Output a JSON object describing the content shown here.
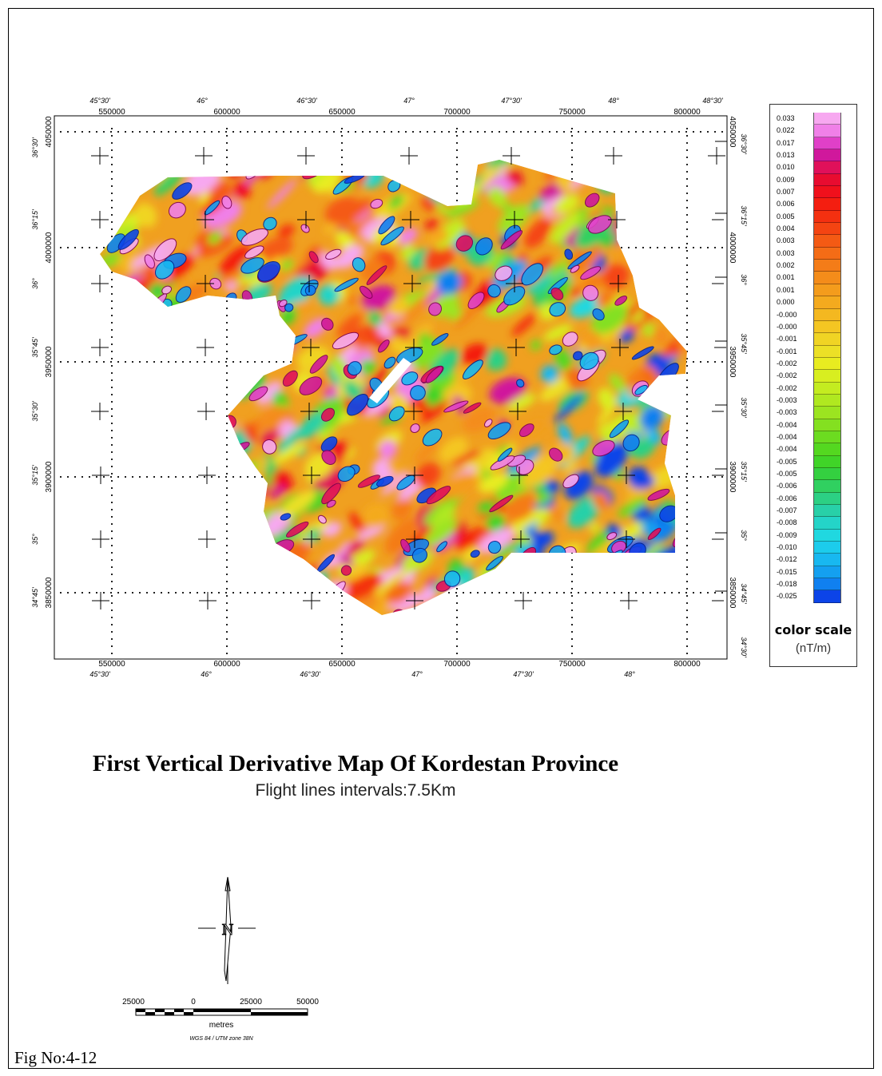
{
  "title": "First Vertical Derivative Map Of Kordestan Province",
  "subtitle": "Flight lines intervals:7.5Km",
  "figure_label": "Fig No:4-12",
  "map": {
    "easting_ticks": [
      "550000",
      "600000",
      "650000",
      "700000",
      "750000",
      "800000"
    ],
    "easting_values": [
      550000,
      600000,
      650000,
      700000,
      750000,
      800000
    ],
    "longitude_labels": [
      "45°30'",
      "46°",
      "46°30'",
      "47°",
      "47°30'",
      "48°",
      "48°30'"
    ],
    "northing_ticks": [
      "4050000",
      "4000000",
      "3950000",
      "3900000",
      "3850000"
    ],
    "northing_values": [
      4050000,
      4000000,
      3950000,
      3900000,
      3850000
    ],
    "latitude_labels": [
      "36°30'",
      "36°15'",
      "36°",
      "35°45'",
      "35°30'",
      "35°15'",
      "35°",
      "34°45'",
      "34°30'"
    ],
    "crosses": "graticule at 15' latitude / 30' longitude intervals"
  },
  "legend": {
    "title": "color scale",
    "unit": "(nT/m)",
    "entries": [
      {
        "label": "0.033",
        "color": "#f7a8f0"
      },
      {
        "label": "0.022",
        "color": "#f080e8"
      },
      {
        "label": "0.017",
        "color": "#e040c8"
      },
      {
        "label": "0.013",
        "color": "#d0189c"
      },
      {
        "label": "0.010",
        "color": "#e0105a"
      },
      {
        "label": "0.009",
        "color": "#e80c30"
      },
      {
        "label": "0.007",
        "color": "#f0101c"
      },
      {
        "label": "0.006",
        "color": "#f41e10"
      },
      {
        "label": "0.005",
        "color": "#f43010"
      },
      {
        "label": "0.004",
        "color": "#f44412"
      },
      {
        "label": "0.003",
        "color": "#f45a14"
      },
      {
        "label": "0.003",
        "color": "#f46c16"
      },
      {
        "label": "0.002",
        "color": "#f47c18"
      },
      {
        "label": "0.001",
        "color": "#f48c1a"
      },
      {
        "label": "0.001",
        "color": "#f49c1c"
      },
      {
        "label": "0.000",
        "color": "#f4aa1e"
      },
      {
        "label": "-0.000",
        "color": "#f4b820"
      },
      {
        "label": "-0.000",
        "color": "#f4c622"
      },
      {
        "label": "-0.001",
        "color": "#f0d424"
      },
      {
        "label": "-0.001",
        "color": "#ece026"
      },
      {
        "label": "-0.002",
        "color": "#e8ec20"
      },
      {
        "label": "-0.002",
        "color": "#d8ee20"
      },
      {
        "label": "-0.002",
        "color": "#c4ec20"
      },
      {
        "label": "-0.003",
        "color": "#b0e820"
      },
      {
        "label": "-0.003",
        "color": "#9ce420"
      },
      {
        "label": "-0.004",
        "color": "#84e020"
      },
      {
        "label": "-0.004",
        "color": "#6cdc20"
      },
      {
        "label": "-0.004",
        "color": "#54d820"
      },
      {
        "label": "-0.005",
        "color": "#40d428"
      },
      {
        "label": "-0.005",
        "color": "#34d040"
      },
      {
        "label": "-0.006",
        "color": "#30d060"
      },
      {
        "label": "-0.006",
        "color": "#2cd084"
      },
      {
        "label": "-0.007",
        "color": "#28d0a8"
      },
      {
        "label": "-0.008",
        "color": "#24d4c8"
      },
      {
        "label": "-0.009",
        "color": "#20d8e0"
      },
      {
        "label": "-0.010",
        "color": "#1cccec"
      },
      {
        "label": "-0.012",
        "color": "#18b8f0"
      },
      {
        "label": "-0.015",
        "color": "#14a0f0"
      },
      {
        "label": "-0.018",
        "color": "#1080f0"
      },
      {
        "label": "-0.025",
        "color": "#0c44e8"
      }
    ]
  },
  "north_arrow": {
    "label": "N"
  },
  "scale_bar": {
    "labels": [
      "25000",
      "0",
      "25000",
      "50000"
    ],
    "unit": "metres",
    "projection": "WGS 84 / UTM zone 38N"
  }
}
